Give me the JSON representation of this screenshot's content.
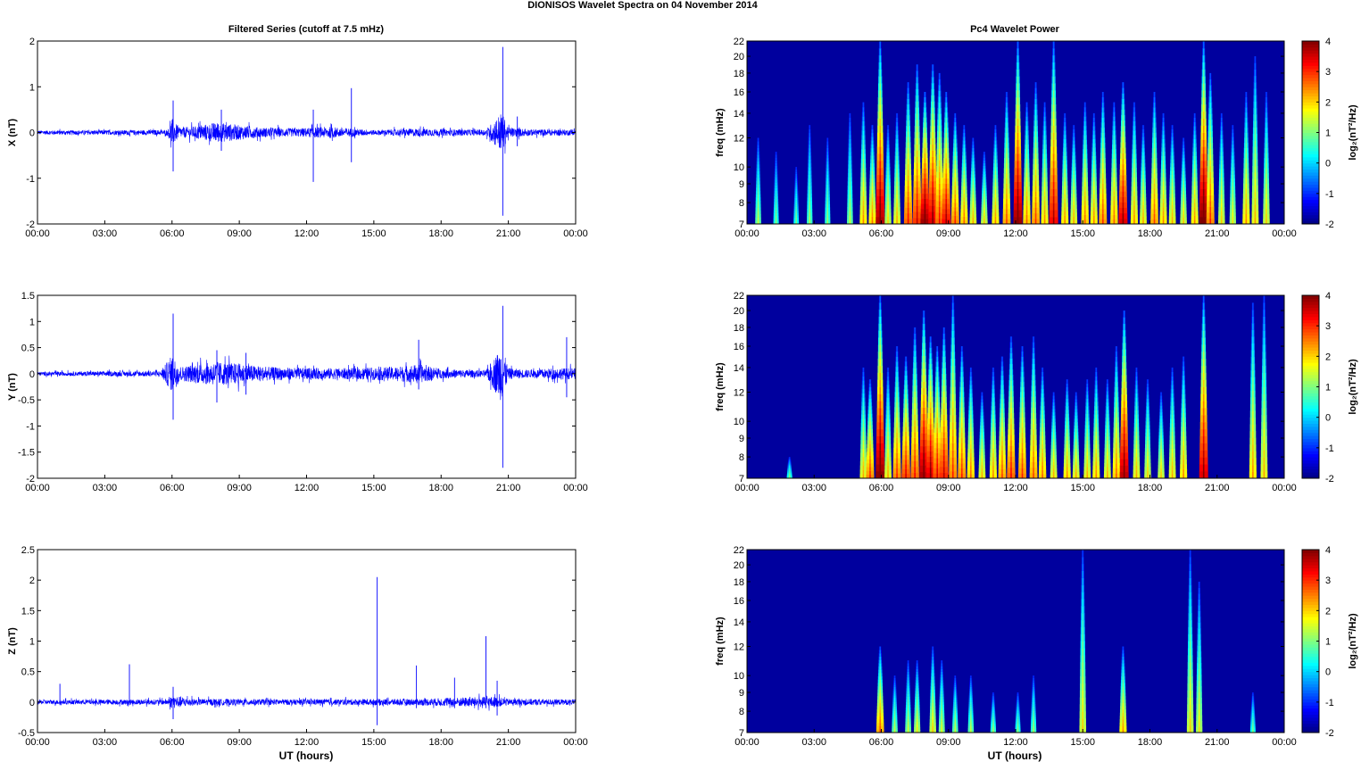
{
  "figure": {
    "suptitle": "DIONISOS Wavelet Spectra on 04 November  2014",
    "left_title": "Filtered Series (cutoff at 7.5 mHz)",
    "right_title": "Pc4 Wavelet Power",
    "xlabel": "UT (hours)",
    "freq_label": "freq (mHz)",
    "colorbar_label": "log₂(nT²/Hz)"
  },
  "chart_data": [
    {
      "type": "line",
      "component": "X",
      "ylabel": "X (nT)",
      "ylim": [
        -2,
        2
      ],
      "yticks": [
        -2,
        -1,
        0,
        1,
        2
      ],
      "xlim_hours": [
        0,
        24
      ],
      "xtick_labels": [
        "00:00",
        "03:00",
        "06:00",
        "09:00",
        "12:00",
        "15:00",
        "18:00",
        "21:00",
        "00:00"
      ],
      "series_color": "#0000ff",
      "noise_envelope": [
        [
          0,
          0.05
        ],
        [
          5.8,
          0.06
        ],
        [
          6.0,
          0.35
        ],
        [
          6.3,
          0.12
        ],
        [
          7,
          0.15
        ],
        [
          8.0,
          0.25
        ],
        [
          9,
          0.18
        ],
        [
          10,
          0.12
        ],
        [
          11.5,
          0.1
        ],
        [
          13,
          0.14
        ],
        [
          14,
          0.1
        ],
        [
          15,
          0.06
        ],
        [
          16,
          0.08
        ],
        [
          17,
          0.1
        ],
        [
          18,
          0.08
        ],
        [
          20,
          0.07
        ],
        [
          20.7,
          0.5
        ],
        [
          21.0,
          0.12
        ],
        [
          22,
          0.08
        ],
        [
          24,
          0.07
        ]
      ],
      "spikes": [
        [
          6.05,
          0.7,
          -0.85
        ],
        [
          8.2,
          0.5,
          -0.4
        ],
        [
          12.3,
          0.5,
          -1.08
        ],
        [
          14.0,
          0.97,
          -0.65
        ],
        [
          20.75,
          1.87,
          -1.82
        ],
        [
          21.4,
          0.35,
          -0.3
        ]
      ]
    },
    {
      "type": "line",
      "component": "Y",
      "ylabel": "Y (nT)",
      "ylim": [
        -2,
        1.5
      ],
      "yticks": [
        -2,
        -1.5,
        -1,
        -0.5,
        0,
        0.5,
        1,
        1.5
      ],
      "xlim_hours": [
        0,
        24
      ],
      "xtick_labels": [
        "00:00",
        "03:00",
        "06:00",
        "09:00",
        "12:00",
        "15:00",
        "18:00",
        "21:00",
        "00:00"
      ],
      "series_color": "#0000ff",
      "noise_envelope": [
        [
          0,
          0.04
        ],
        [
          5.5,
          0.06
        ],
        [
          6.0,
          0.4
        ],
        [
          6.4,
          0.15
        ],
        [
          7,
          0.2
        ],
        [
          8,
          0.25
        ],
        [
          9,
          0.22
        ],
        [
          10,
          0.15
        ],
        [
          12,
          0.12
        ],
        [
          14,
          0.12
        ],
        [
          16,
          0.15
        ],
        [
          17,
          0.2
        ],
        [
          18,
          0.1
        ],
        [
          20,
          0.07
        ],
        [
          20.7,
          0.6
        ],
        [
          21.0,
          0.12
        ],
        [
          22,
          0.08
        ],
        [
          23,
          0.12
        ],
        [
          24,
          0.12
        ]
      ],
      "spikes": [
        [
          6.05,
          1.15,
          -0.88
        ],
        [
          8.0,
          0.45,
          -0.55
        ],
        [
          9.3,
          0.4,
          -0.4
        ],
        [
          17.0,
          0.65,
          -0.3
        ],
        [
          20.75,
          1.3,
          -1.8
        ],
        [
          23.6,
          0.7,
          -0.45
        ]
      ]
    },
    {
      "type": "line",
      "component": "Z",
      "ylabel": "Z (nT)",
      "ylim": [
        -0.5,
        2.5
      ],
      "yticks": [
        -0.5,
        0,
        0.5,
        1,
        1.5,
        2,
        2.5
      ],
      "xlim_hours": [
        0,
        24
      ],
      "xtick_labels": [
        "00:00",
        "03:00",
        "06:00",
        "09:00",
        "12:00",
        "15:00",
        "18:00",
        "21:00",
        "00:00"
      ],
      "series_color": "#0000ff",
      "noise_envelope": [
        [
          0,
          0.04
        ],
        [
          5.8,
          0.05
        ],
        [
          6.0,
          0.12
        ],
        [
          7,
          0.06
        ],
        [
          12,
          0.05
        ],
        [
          17,
          0.06
        ],
        [
          18.5,
          0.08
        ],
        [
          20.3,
          0.1
        ],
        [
          21,
          0.06
        ],
        [
          24,
          0.05
        ]
      ],
      "spikes": [
        [
          1.0,
          0.3,
          -0.05
        ],
        [
          4.1,
          0.62,
          -0.05
        ],
        [
          6.05,
          0.25,
          -0.28
        ],
        [
          15.15,
          2.05,
          -0.38
        ],
        [
          16.9,
          0.6,
          -0.1
        ],
        [
          18.6,
          0.4,
          -0.1
        ],
        [
          20.0,
          1.08,
          -0.1
        ],
        [
          20.5,
          0.35,
          -0.22
        ]
      ]
    },
    {
      "type": "heatmap",
      "component": "X",
      "ylabel": "freq (mHz)",
      "yscale": "log",
      "ylim_mHz": [
        7,
        22
      ],
      "yticks": [
        7,
        8,
        9,
        10,
        12,
        14,
        16,
        18,
        20,
        22
      ],
      "xlim_hours": [
        0,
        24
      ],
      "xtick_labels": [
        "00:00",
        "03:00",
        "06:00",
        "09:00",
        "12:00",
        "15:00",
        "18:00",
        "21:00",
        "00:00"
      ],
      "colormap": "jet",
      "clim": [
        -2,
        4
      ],
      "cbar_ticks": [
        -2,
        -1,
        0,
        1,
        2,
        3,
        4
      ],
      "bursts": [
        [
          0.5,
          0.8,
          12
        ],
        [
          1.3,
          0.4,
          11
        ],
        [
          2.2,
          0.3,
          10
        ],
        [
          2.8,
          0.6,
          13
        ],
        [
          3.6,
          0.5,
          12
        ],
        [
          4.6,
          0.8,
          14
        ],
        [
          5.2,
          1.8,
          15
        ],
        [
          5.6,
          1.9,
          13
        ],
        [
          5.95,
          3.7,
          22
        ],
        [
          6.3,
          1.3,
          13
        ],
        [
          6.7,
          1.6,
          14
        ],
        [
          7.2,
          2.6,
          17
        ],
        [
          7.6,
          2.9,
          19
        ],
        [
          7.95,
          3.8,
          16
        ],
        [
          8.3,
          3.4,
          19
        ],
        [
          8.6,
          2.6,
          18
        ],
        [
          8.9,
          3.2,
          16
        ],
        [
          9.3,
          2.4,
          14
        ],
        [
          9.7,
          2.0,
          13
        ],
        [
          10.1,
          1.6,
          12
        ],
        [
          10.6,
          1.4,
          11
        ],
        [
          11.1,
          1.8,
          13
        ],
        [
          11.6,
          2.2,
          16
        ],
        [
          12.1,
          3.8,
          22
        ],
        [
          12.5,
          2.0,
          15
        ],
        [
          12.9,
          2.3,
          17
        ],
        [
          13.3,
          1.8,
          15
        ],
        [
          13.7,
          3.2,
          22
        ],
        [
          14.2,
          1.8,
          14
        ],
        [
          14.6,
          1.6,
          13
        ],
        [
          15.1,
          2.0,
          15
        ],
        [
          15.5,
          1.8,
          14
        ],
        [
          15.9,
          2.3,
          16
        ],
        [
          16.4,
          2.0,
          15
        ],
        [
          16.8,
          3.4,
          17
        ],
        [
          17.3,
          1.8,
          15
        ],
        [
          17.7,
          1.6,
          13
        ],
        [
          18.2,
          2.2,
          16
        ],
        [
          18.6,
          1.8,
          14
        ],
        [
          19.0,
          1.6,
          13
        ],
        [
          19.5,
          1.4,
          12
        ],
        [
          20.0,
          1.8,
          14
        ],
        [
          20.4,
          4.0,
          22
        ],
        [
          20.7,
          2.4,
          18
        ],
        [
          21.2,
          1.4,
          14
        ],
        [
          21.7,
          1.2,
          13
        ],
        [
          22.3,
          1.8,
          16
        ],
        [
          22.7,
          1.6,
          20
        ],
        [
          23.2,
          1.4,
          16
        ]
      ]
    },
    {
      "type": "heatmap",
      "component": "Y",
      "ylabel": "freq (mHz)",
      "yscale": "log",
      "ylim_mHz": [
        7,
        22
      ],
      "yticks": [
        7,
        8,
        9,
        10,
        12,
        14,
        16,
        18,
        20,
        22
      ],
      "xlim_hours": [
        0,
        24
      ],
      "xtick_labels": [
        "00:00",
        "03:00",
        "06:00",
        "09:00",
        "12:00",
        "15:00",
        "18:00",
        "21:00",
        "00:00"
      ],
      "colormap": "jet",
      "clim": [
        -2,
        4
      ],
      "cbar_ticks": [
        -2,
        -1,
        0,
        1,
        2,
        3,
        4
      ],
      "bursts": [
        [
          1.9,
          0.5,
          8
        ],
        [
          5.2,
          1.6,
          14
        ],
        [
          5.5,
          2.4,
          13
        ],
        [
          5.95,
          3.9,
          22
        ],
        [
          6.3,
          1.6,
          14
        ],
        [
          6.7,
          2.4,
          16
        ],
        [
          7.1,
          2.8,
          15
        ],
        [
          7.5,
          2.6,
          18
        ],
        [
          7.9,
          3.7,
          20
        ],
        [
          8.2,
          3.4,
          17
        ],
        [
          8.5,
          2.8,
          16
        ],
        [
          8.8,
          3.0,
          18
        ],
        [
          9.2,
          2.4,
          22
        ],
        [
          9.6,
          2.4,
          16
        ],
        [
          10.0,
          2.0,
          14
        ],
        [
          10.5,
          1.6,
          12
        ],
        [
          11.0,
          1.8,
          14
        ],
        [
          11.4,
          2.2,
          15
        ],
        [
          11.8,
          2.6,
          17
        ],
        [
          12.3,
          2.4,
          16
        ],
        [
          12.8,
          2.2,
          17
        ],
        [
          13.2,
          2.0,
          14
        ],
        [
          13.7,
          1.6,
          12
        ],
        [
          14.3,
          1.8,
          13
        ],
        [
          14.7,
          1.6,
          12
        ],
        [
          15.2,
          1.6,
          13
        ],
        [
          15.6,
          1.8,
          14
        ],
        [
          16.1,
          1.6,
          13
        ],
        [
          16.5,
          2.0,
          16
        ],
        [
          16.85,
          3.6,
          20
        ],
        [
          17.4,
          1.6,
          14
        ],
        [
          17.9,
          1.4,
          13
        ],
        [
          18.5,
          1.4,
          12
        ],
        [
          19.0,
          1.6,
          14
        ],
        [
          19.5,
          1.8,
          15
        ],
        [
          20.4,
          3.4,
          22
        ],
        [
          22.6,
          1.8,
          21
        ],
        [
          23.1,
          1.6,
          22
        ]
      ]
    },
    {
      "type": "heatmap",
      "component": "Z",
      "ylabel": "freq (mHz)",
      "yscale": "log",
      "ylim_mHz": [
        7,
        22
      ],
      "yticks": [
        7,
        8,
        9,
        10,
        12,
        14,
        16,
        18,
        20,
        22
      ],
      "xlim_hours": [
        0,
        24
      ],
      "xtick_labels": [
        "00:00",
        "03:00",
        "06:00",
        "09:00",
        "12:00",
        "15:00",
        "18:00",
        "21:00",
        "00:00"
      ],
      "colormap": "jet",
      "clim": [
        -2,
        4
      ],
      "cbar_ticks": [
        -2,
        -1,
        0,
        1,
        2,
        3,
        4
      ],
      "bursts": [
        [
          5.95,
          2.2,
          12
        ],
        [
          6.6,
          0.8,
          10
        ],
        [
          7.2,
          0.9,
          11
        ],
        [
          7.6,
          1.2,
          11
        ],
        [
          8.3,
          1.4,
          12
        ],
        [
          8.7,
          1.0,
          11
        ],
        [
          9.3,
          0.8,
          10
        ],
        [
          10.0,
          0.8,
          10
        ],
        [
          11.0,
          0.6,
          9
        ],
        [
          12.1,
          0.5,
          9
        ],
        [
          12.8,
          0.6,
          10
        ],
        [
          15.0,
          1.4,
          22
        ],
        [
          16.8,
          1.8,
          12
        ],
        [
          19.8,
          1.4,
          22
        ],
        [
          20.2,
          1.2,
          18
        ],
        [
          22.6,
          0.4,
          9
        ]
      ]
    }
  ]
}
